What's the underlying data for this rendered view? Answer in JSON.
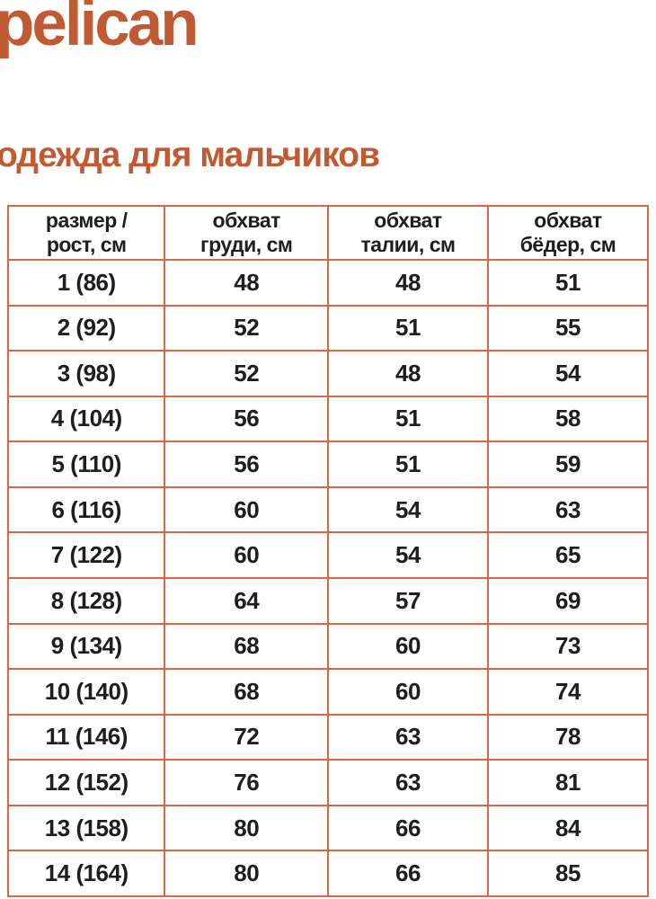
{
  "brand": {
    "logo_text": "pelican"
  },
  "heading": "одежда для мальчиков",
  "colors": {
    "accent": "#c05a33",
    "table_border": "#da6647",
    "table_text": "#1e1e1e",
    "background": "#ffffff"
  },
  "table": {
    "columns": [
      {
        "line1": "размер /",
        "line2": "рост, см"
      },
      {
        "line1": "обхват",
        "line2": "груди, см"
      },
      {
        "line1": "обхват",
        "line2": "талии, см"
      },
      {
        "line1": "обхват",
        "line2": "бёдер, см"
      }
    ],
    "rows": [
      [
        "1 (86)",
        "48",
        "48",
        "51"
      ],
      [
        "2 (92)",
        "52",
        "51",
        "55"
      ],
      [
        "3 (98)",
        "52",
        "48",
        "54"
      ],
      [
        "4 (104)",
        "56",
        "51",
        "58"
      ],
      [
        "5 (110)",
        "56",
        "51",
        "59"
      ],
      [
        "6 (116)",
        "60",
        "54",
        "63"
      ],
      [
        "7 (122)",
        "60",
        "54",
        "65"
      ],
      [
        "8 (128)",
        "64",
        "57",
        "69"
      ],
      [
        "9 (134)",
        "68",
        "60",
        "73"
      ],
      [
        "10 (140)",
        "68",
        "60",
        "74"
      ],
      [
        "11 (146)",
        "72",
        "63",
        "78"
      ],
      [
        "12 (152)",
        "76",
        "63",
        "81"
      ],
      [
        "13 (158)",
        "80",
        "66",
        "84"
      ],
      [
        "14 (164)",
        "80",
        "66",
        "85"
      ]
    ]
  }
}
